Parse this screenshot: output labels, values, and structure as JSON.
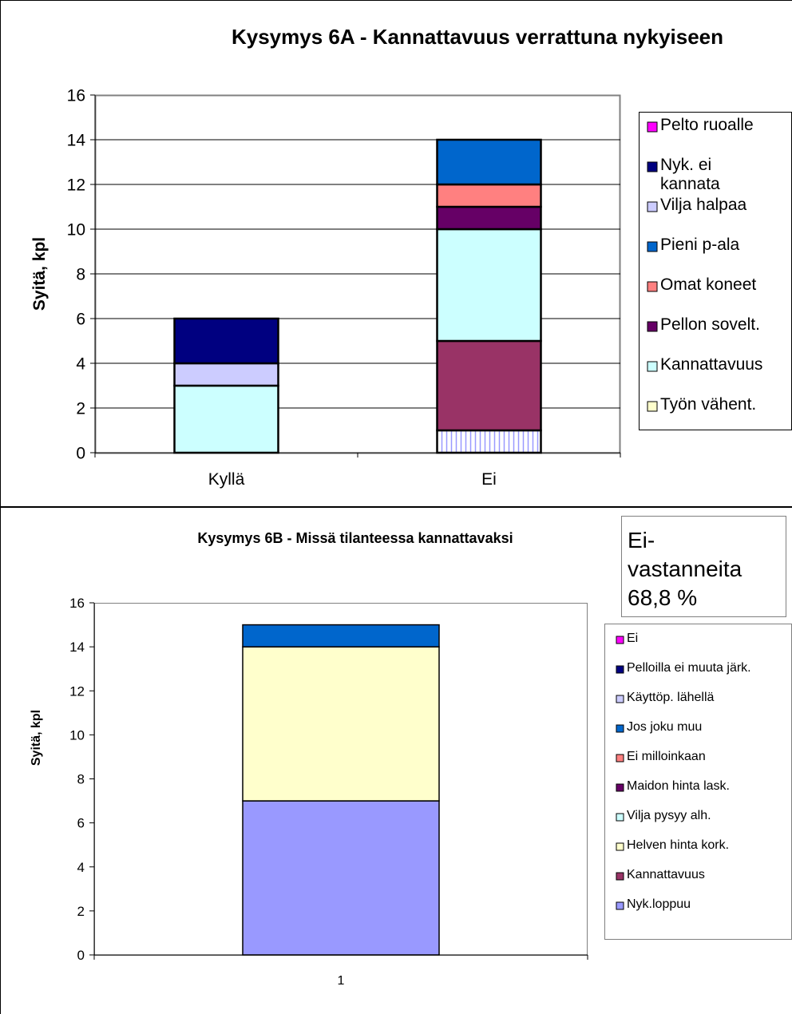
{
  "colors": {
    "Pelto ruoalle": "#ff00ff",
    "Nyk. ei kannata": "#000080",
    "Vilja halpaa": "#ccccff",
    "Pieni p-ala": "#0066cc",
    "Omat koneet": "#ff8080",
    "Pellon sovelt.": "#660066",
    "Kannattavuus_6A": "#ccffff",
    "Työn vähent.": "#ffffcc",
    "Ei": "#ff00ff",
    "Pelloilla ei muuta järk.": "#000080",
    "Käyttöp. lähellä": "#ccccff",
    "Jos joku muu": "#0066cc",
    "Ei milloinkaan": "#ff8080",
    "Maidon hinta lask.": "#660066",
    "Vilja pysyy alh.": "#ccffff",
    "Helven hinta kork.": "#ffffcc",
    "Kannattavuus_6B": "#993366",
    "Nyk.loppuu": "#9999ff",
    "hatched_segment": "#ffffff",
    "hatch_line": "#9999ff",
    "gridline": "#000000",
    "plot_border": "#808080"
  },
  "chart_data": [
    {
      "type": "bar",
      "stacked": true,
      "title": "Kysymys 6A - Kannattavuus verrattuna nykyiseen",
      "xlabel": "",
      "ylabel": "Syitä, kpl",
      "ylim": [
        0,
        16
      ],
      "yticks": [
        "0",
        "2",
        "4",
        "6",
        "8",
        "10",
        "12",
        "14",
        "16"
      ],
      "categories": [
        "Kyllä",
        "Ei"
      ],
      "grid": true,
      "legend_position": "right",
      "legend": [
        "Pelto ruoalle",
        "Nyk. ei kannata",
        "Vilja halpaa",
        "Pieni p-ala",
        "Omat koneet",
        "Pellon sovelt.",
        "Kannattavuus",
        "Työn vähent."
      ],
      "stack": [
        {
          "category": "Kyllä",
          "segments": [
            {
              "value": 3,
              "color_key": "Kannattavuus_6A"
            },
            {
              "value": 1,
              "color_key": "Vilja halpaa"
            },
            {
              "value": 2,
              "color_key": "Nyk. ei kannata"
            }
          ]
        },
        {
          "category": "Ei",
          "segments": [
            {
              "value": 1,
              "color_key": "hatched_segment",
              "hatched": true
            },
            {
              "value": 4,
              "color_key": "Kannattavuus_6B"
            },
            {
              "value": 5,
              "color_key": "Kannattavuus_6A"
            },
            {
              "value": 1,
              "color_key": "Pellon sovelt."
            },
            {
              "value": 1,
              "color_key": "Omat koneet"
            },
            {
              "value": 2,
              "color_key": "Pieni p-ala"
            }
          ]
        }
      ]
    },
    {
      "type": "bar",
      "stacked": true,
      "title": "Kysymys 6B - Missä tilanteessa kannattavaksi",
      "xlabel": "",
      "ylabel": "Syitä, kpl",
      "ylim": [
        0,
        16
      ],
      "yticks": [
        "0",
        "2",
        "4",
        "6",
        "8",
        "10",
        "12",
        "14",
        "16"
      ],
      "categories": [
        "1"
      ],
      "grid": false,
      "legend_position": "right",
      "legend": [
        "Ei",
        "Pelloilla ei muuta järk.",
        "Käyttöp. lähellä",
        "Jos joku muu",
        "Ei milloinkaan",
        "Maidon hinta lask.",
        "Vilja pysyy alh.",
        "Helven hinta kork.",
        "Kannattavuus",
        "Nyk.loppuu"
      ],
      "stack": [
        {
          "category": "1",
          "segments": [
            {
              "value": 7,
              "color_key": "Nyk.loppuu"
            },
            {
              "value": 7,
              "color_key": "Helven hinta kork."
            },
            {
              "value": 1,
              "color_key": "Jos joku muu"
            }
          ]
        }
      ],
      "annotation": "Ei-vastanneita 68,8 %"
    }
  ],
  "legend_color_keys": {
    "chart1": [
      "Pelto ruoalle",
      "Nyk. ei kannata",
      "Vilja halpaa",
      "Pieni p-ala",
      "Omat koneet",
      "Pellon sovelt.",
      "Kannattavuus_6A",
      "Työn vähent."
    ],
    "chart2": [
      "Ei",
      "Pelloilla ei muuta järk.",
      "Käyttöp. lähellä",
      "Jos joku muu",
      "Ei milloinkaan",
      "Maidon hinta lask.",
      "Vilja pysyy alh.",
      "Helven hinta kork.",
      "Kannattavuus_6B",
      "Nyk.loppuu"
    ]
  },
  "annotation_lines": [
    "Ei-",
    "vastanneita",
    "68,8 %"
  ]
}
